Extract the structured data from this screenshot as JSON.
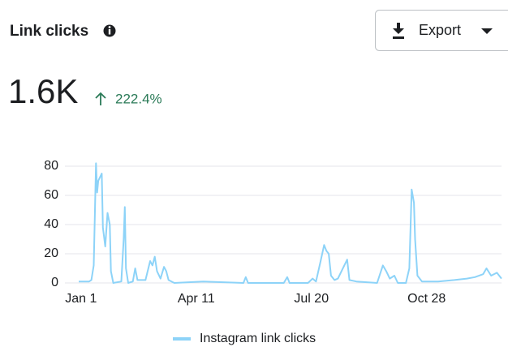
{
  "export_button": "Export",
  "chart_data": {
    "type": "line",
    "title": "Link clicks",
    "total": "1.6K",
    "change": "222.4%",
    "x": [
      -2,
      0,
      7,
      9,
      11,
      13,
      14,
      15,
      18,
      19,
      21,
      23,
      25,
      26,
      28,
      35,
      37,
      38,
      39,
      41,
      45,
      47,
      49,
      56,
      60,
      62,
      64,
      66,
      69,
      72,
      74,
      76,
      81,
      106,
      141,
      143,
      145,
      176,
      179,
      181,
      197,
      201,
      204,
      208,
      211,
      213,
      215,
      217,
      220,
      223,
      231,
      233,
      239,
      257,
      262,
      265,
      268,
      272,
      275,
      282,
      285,
      287,
      289,
      290,
      292,
      296,
      310,
      324,
      335,
      342,
      349,
      352,
      356,
      361,
      365
    ],
    "series": [
      {
        "name": "Instagram link clicks",
        "color": "#8dd3f8",
        "values": [
          1,
          1,
          1,
          2,
          12,
          82,
          62,
          70,
          75,
          38,
          25,
          48,
          40,
          8,
          0,
          1,
          30,
          52,
          10,
          0,
          1,
          10,
          2,
          2,
          15,
          12,
          18,
          8,
          3,
          11,
          8,
          2,
          0,
          1,
          0,
          4,
          0,
          0,
          4,
          0,
          0,
          3,
          1,
          15,
          26,
          22,
          20,
          5,
          2,
          3,
          16,
          2,
          1,
          0,
          12,
          8,
          3,
          5,
          0,
          0,
          10,
          64,
          55,
          30,
          5,
          1,
          1,
          2,
          3,
          4,
          6,
          10,
          5,
          7,
          3
        ]
      }
    ],
    "xlim": [
      -2,
      365
    ],
    "xticks": [
      {
        "value": 0,
        "label": "Jan 1"
      },
      {
        "value": 100,
        "label": "Apr 11"
      },
      {
        "value": 200,
        "label": "Jul 20"
      },
      {
        "value": 300,
        "label": "Oct 28"
      }
    ],
    "ylim": [
      0,
      80
    ],
    "yticks": [
      0,
      20,
      40,
      60,
      80
    ],
    "grid": true,
    "legend": "bottom"
  }
}
